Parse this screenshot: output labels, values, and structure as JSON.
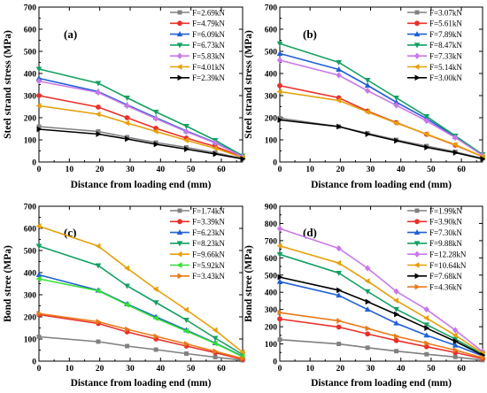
{
  "chart_data": [
    {
      "type": "line",
      "panel_label": "(a)",
      "xlabel": "Distance from loading end (mm)",
      "ylabel": "Steel strand stress (MPa)",
      "xlim": [
        0,
        67
      ],
      "ylim": [
        0,
        700
      ],
      "xticks": [
        0,
        10,
        20,
        30,
        40,
        50,
        60
      ],
      "yticks": [
        0,
        100,
        200,
        300,
        400,
        500,
        600,
        700
      ],
      "legend_position": "top-right",
      "series": [
        {
          "name": "F=2.69kN",
          "color": "#808080",
          "marker": "square",
          "x": [
            0,
            19.5,
            29,
            38.5,
            48.5,
            58,
            67
          ],
          "y": [
            160,
            138,
            112,
            88,
            66,
            42,
            16
          ]
        },
        {
          "name": "F=4.79kN",
          "color": "#e8302a",
          "marker": "circle",
          "x": [
            0,
            19.5,
            29,
            38.5,
            48.5,
            58,
            67
          ],
          "y": [
            300,
            248,
            200,
            152,
            108,
            70,
            22
          ]
        },
        {
          "name": "F=6.09kN",
          "color": "#1f5fd6",
          "marker": "triangle-up",
          "x": [
            0,
            19.5,
            29,
            38.5,
            48.5,
            58,
            67
          ],
          "y": [
            378,
            318,
            258,
            200,
            140,
            88,
            25
          ]
        },
        {
          "name": "F=6.73kN",
          "color": "#13a061",
          "marker": "triangle-down",
          "x": [
            0,
            19.5,
            29,
            38.5,
            48.5,
            58,
            67
          ],
          "y": [
            420,
            356,
            290,
            226,
            162,
            98,
            28
          ]
        },
        {
          "name": "F=5.83kN",
          "color": "#c878e8",
          "marker": "diamond",
          "x": [
            0,
            19.5,
            29,
            38.5,
            48.5,
            58,
            67
          ],
          "y": [
            365,
            314,
            254,
            196,
            137,
            86,
            24
          ]
        },
        {
          "name": "F=4.01kN",
          "color": "#e6a00a",
          "marker": "triangle-left",
          "x": [
            0,
            19.5,
            29,
            38.5,
            48.5,
            58,
            67
          ],
          "y": [
            254,
            216,
            176,
            138,
            98,
            62,
            20
          ]
        },
        {
          "name": "F=2.39kN",
          "color": "#000000",
          "marker": "triangle-right",
          "x": [
            0,
            19.5,
            29,
            38.5,
            48.5,
            58,
            67
          ],
          "y": [
            148,
            126,
            104,
            80,
            58,
            36,
            14
          ]
        }
      ]
    },
    {
      "type": "line",
      "panel_label": "(b)",
      "xlabel": "Distance from loading end (mm)",
      "ylabel": "Steel strand stress (MPa)",
      "xlim": [
        0,
        67
      ],
      "ylim": [
        0,
        700
      ],
      "xticks": [
        0,
        10,
        20,
        30,
        40,
        50,
        60
      ],
      "yticks": [
        0,
        100,
        200,
        300,
        400,
        500,
        600,
        700
      ],
      "legend_position": "top-right",
      "series": [
        {
          "name": "F=3.07kN",
          "color": "#808080",
          "marker": "square",
          "x": [
            0,
            19.5,
            29,
            38.5,
            48.5,
            58,
            67
          ],
          "y": [
            198,
            160,
            130,
            100,
            72,
            46,
            16
          ]
        },
        {
          "name": "F=5.61kN",
          "color": "#e8302a",
          "marker": "circle",
          "x": [
            0,
            19.5,
            29,
            38.5,
            48.5,
            58,
            67
          ],
          "y": [
            345,
            290,
            230,
            178,
            125,
            76,
            24
          ]
        },
        {
          "name": "F=7.89kN",
          "color": "#1f5fd6",
          "marker": "triangle-up",
          "x": [
            0,
            19.5,
            29,
            38.5,
            48.5,
            58,
            67
          ],
          "y": [
            490,
            418,
            346,
            270,
            196,
            114,
            32
          ]
        },
        {
          "name": "F=8.47kN",
          "color": "#13a061",
          "marker": "triangle-down",
          "x": [
            0,
            19.5,
            29,
            38.5,
            48.5,
            58,
            67
          ],
          "y": [
            535,
            450,
            370,
            290,
            206,
            118,
            34
          ]
        },
        {
          "name": "F=7.33kN",
          "color": "#c878e8",
          "marker": "diamond",
          "x": [
            0,
            19.5,
            29,
            38.5,
            48.5,
            58,
            67
          ],
          "y": [
            460,
            392,
            322,
            256,
            186,
            110,
            30
          ]
        },
        {
          "name": "F=5.14kN",
          "color": "#e6a00a",
          "marker": "triangle-left",
          "x": [
            0,
            19.5,
            29,
            38.5,
            48.5,
            58,
            67
          ],
          "y": [
            318,
            278,
            226,
            176,
            126,
            78,
            24
          ]
        },
        {
          "name": "F=3.00kN",
          "color": "#000000",
          "marker": "triangle-right",
          "x": [
            0,
            19.5,
            29,
            38.5,
            48.5,
            58,
            67
          ],
          "y": [
            190,
            160,
            126,
            96,
            66,
            42,
            14
          ]
        }
      ]
    },
    {
      "type": "line",
      "panel_label": "(c)",
      "xlabel": "Distance from loading end (mm)",
      "ylabel": "Bond stree (MPa)",
      "xlim": [
        0,
        67
      ],
      "ylim": [
        0,
        700
      ],
      "xticks": [
        0,
        10,
        20,
        30,
        40,
        50,
        60
      ],
      "yticks": [
        0,
        100,
        200,
        300,
        400,
        500,
        600,
        700
      ],
      "legend_position": "top-right",
      "series": [
        {
          "name": "F=1.74kN",
          "color": "#808080",
          "marker": "square",
          "x": [
            0,
            19.5,
            29,
            38.5,
            48.5,
            58,
            67
          ],
          "y": [
            110,
            88,
            68,
            52,
            34,
            18,
            4
          ]
        },
        {
          "name": "F=3.39kN",
          "color": "#e8302a",
          "marker": "circle",
          "x": [
            0,
            19.5,
            29,
            38.5,
            48.5,
            58,
            67
          ],
          "y": [
            210,
            170,
            132,
            100,
            68,
            38,
            8
          ]
        },
        {
          "name": "F=6.23kN",
          "color": "#1f5fd6",
          "marker": "triangle-up",
          "x": [
            0,
            19.5,
            29,
            38.5,
            48.5,
            58,
            67
          ],
          "y": [
            390,
            320,
            258,
            200,
            140,
            82,
            22
          ]
        },
        {
          "name": "F=8.23kN",
          "color": "#13a061",
          "marker": "triangle-down",
          "x": [
            0,
            19.5,
            29,
            38.5,
            48.5,
            58,
            67
          ],
          "y": [
            520,
            432,
            340,
            265,
            186,
            104,
            30
          ]
        },
        {
          "name": "F=9.66kN",
          "color": "#e6a00a",
          "marker": "triangle-left",
          "x": [
            0,
            19.5,
            29,
            38.5,
            48.5,
            58,
            67
          ],
          "y": [
            610,
            520,
            420,
            325,
            232,
            140,
            40
          ]
        },
        {
          "name": "F=5.92kN",
          "color": "#33e033",
          "marker": "triangle-left",
          "x": [
            0,
            19.5,
            29,
            38.5,
            48.5,
            58,
            67
          ],
          "y": [
            372,
            318,
            255,
            194,
            136,
            80,
            20
          ]
        },
        {
          "name": "F=3.43kN",
          "color": "#e87a1a",
          "marker": "triangle-right",
          "x": [
            0,
            19.5,
            29,
            38.5,
            48.5,
            58,
            67
          ],
          "y": [
            215,
            178,
            144,
            112,
            78,
            44,
            12
          ]
        }
      ]
    },
    {
      "type": "line",
      "panel_label": "(d)",
      "xlabel": "Distance from loading end (mm)",
      "ylabel": "Bond stree (MPa)",
      "xlim": [
        0,
        67
      ],
      "ylim": [
        0,
        900
      ],
      "xticks": [
        0,
        10,
        20,
        30,
        40,
        50,
        60
      ],
      "yticks": [
        0,
        100,
        200,
        300,
        400,
        500,
        600,
        700,
        800,
        900
      ],
      "legend_position": "top-right",
      "series": [
        {
          "name": "F=1.99kN",
          "color": "#808080",
          "marker": "square",
          "x": [
            0,
            19.5,
            29,
            38.5,
            48.5,
            58,
            67
          ],
          "y": [
            125,
            100,
            78,
            58,
            40,
            24,
            6
          ]
        },
        {
          "name": "F=3.90kN",
          "color": "#e8302a",
          "marker": "circle",
          "x": [
            0,
            19.5,
            29,
            38.5,
            48.5,
            58,
            67
          ],
          "y": [
            245,
            198,
            158,
            120,
            84,
            50,
            14
          ]
        },
        {
          "name": "F=7.30kN",
          "color": "#1f5fd6",
          "marker": "triangle-up",
          "x": [
            0,
            19.5,
            29,
            38.5,
            48.5,
            58,
            67
          ],
          "y": [
            462,
            382,
            300,
            220,
            150,
            92,
            30
          ]
        },
        {
          "name": "F=9.88kN",
          "color": "#13a061",
          "marker": "triangle-down",
          "x": [
            0,
            19.5,
            29,
            38.5,
            48.5,
            58,
            67
          ],
          "y": [
            620,
            512,
            405,
            302,
            212,
            128,
            40
          ]
        },
        {
          "name": "F=12.28kN",
          "color": "#c878e8",
          "marker": "diamond",
          "x": [
            0,
            19.5,
            29,
            38.5,
            48.5,
            58,
            67
          ],
          "y": [
            770,
            655,
            540,
            405,
            300,
            180,
            55
          ]
        },
        {
          "name": "F=10.64kN",
          "color": "#e6a00a",
          "marker": "triangle-left",
          "x": [
            0,
            19.5,
            29,
            38.5,
            48.5,
            58,
            67
          ],
          "y": [
            670,
            570,
            465,
            352,
            250,
            150,
            46
          ]
        },
        {
          "name": "F=7.68kN",
          "color": "#000000",
          "marker": "triangle-right",
          "x": [
            0,
            19.5,
            29,
            38.5,
            48.5,
            58,
            67
          ],
          "y": [
            488,
            412,
            345,
            272,
            192,
            115,
            35
          ]
        },
        {
          "name": "F=4.36kN",
          "color": "#e87a1a",
          "marker": "triangle-right",
          "x": [
            0,
            19.5,
            29,
            38.5,
            48.5,
            58,
            67
          ],
          "y": [
            282,
            234,
            190,
            144,
            104,
            64,
            20
          ]
        }
      ]
    }
  ]
}
